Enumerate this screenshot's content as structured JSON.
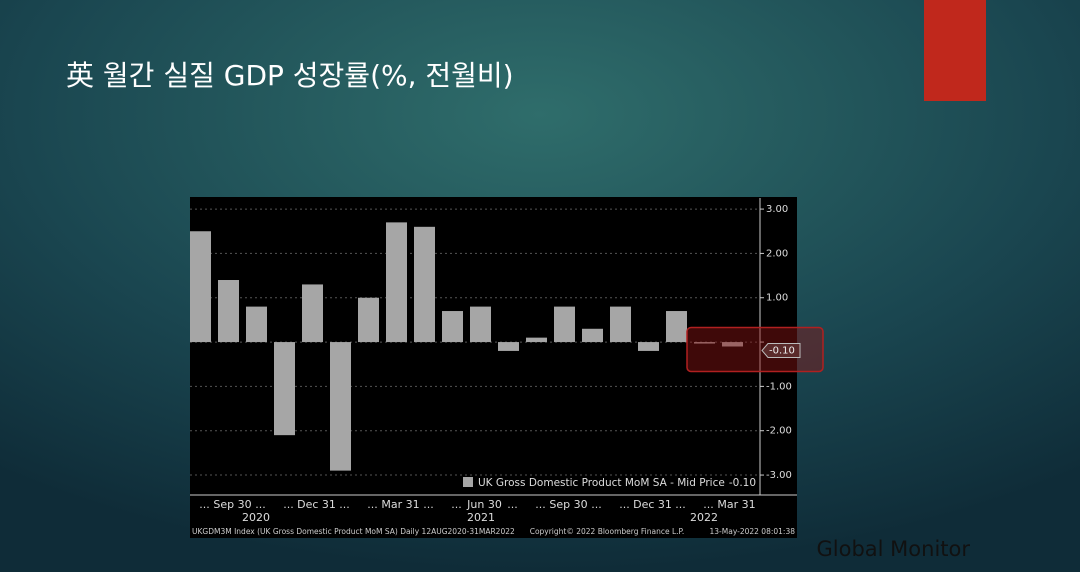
{
  "slide_title": "英 월간 실질 GDP 성장률(%, 전월비)",
  "brand": "Global Monitor",
  "chart_data": {
    "type": "bar",
    "categories": [
      "...",
      "Sep 30",
      "...",
      "...",
      "Dec 31",
      "...",
      "...",
      "Mar 31",
      "...",
      "...",
      "Jun 30",
      "...",
      "...",
      "Sep 30",
      "...",
      "...",
      "Dec 31",
      "...",
      "...",
      "Mar 31"
    ],
    "years": [
      "2020",
      "2021",
      "2022"
    ],
    "series": [
      {
        "name": "UK Gross Domestic Product MoM SA - Mid Price",
        "color": "#a6a6a6",
        "values": [
          2.5,
          1.4,
          0.8,
          -2.1,
          1.3,
          -2.9,
          1.0,
          2.7,
          2.6,
          0.7,
          0.8,
          -0.2,
          0.1,
          0.8,
          0.3,
          0.8,
          -0.2,
          0.7,
          0.0,
          -0.1
        ],
        "value_labels": [
          null,
          null,
          null,
          null,
          null,
          null,
          null,
          null,
          null,
          null,
          null,
          null,
          null,
          null,
          null,
          null,
          null,
          null,
          null,
          "-0.10"
        ]
      }
    ],
    "ylim": [
      -3.45,
      3.25
    ],
    "yticks": [
      {
        "value": 3,
        "label": "3.00"
      },
      {
        "value": 2,
        "label": "2.00"
      },
      {
        "value": 1,
        "label": "1.00"
      },
      {
        "value": 0,
        "label": ""
      },
      {
        "value": -1,
        "label": "-1.00"
      },
      {
        "value": -2,
        "label": "-2.00"
      },
      {
        "value": -3,
        "label": "-3.00"
      }
    ],
    "grid": true,
    "legend": "lower right",
    "footer": [
      "UKGDM3M Index (UK Gross Domestic Product MoM SA)  Daily 12AUG2020-31MAR2022",
      "Copyright© 2022 Bloomberg Finance L.P.",
      "13-May-2022 08:01:38"
    ]
  }
}
